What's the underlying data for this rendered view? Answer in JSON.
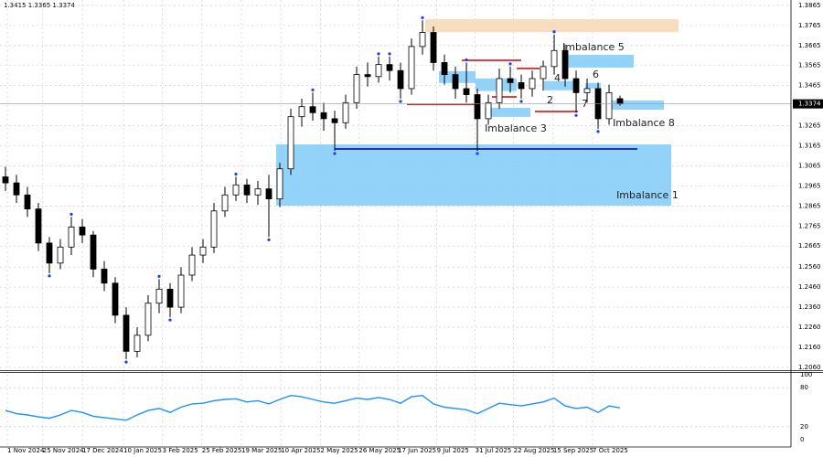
{
  "chart_data": {
    "type": "candlestick",
    "header": "1.3415 1.3365 1.3374",
    "candles": [
      [
        1.301,
        1.306,
        1.294,
        1.298
      ],
      [
        1.298,
        1.302,
        1.288,
        1.292
      ],
      [
        1.292,
        1.296,
        1.281,
        1.285
      ],
      [
        1.285,
        1.288,
        1.264,
        1.268
      ],
      [
        1.268,
        1.271,
        1.253,
        1.258
      ],
      [
        1.258,
        1.27,
        1.255,
        1.266
      ],
      [
        1.266,
        1.281,
        1.262,
        1.276
      ],
      [
        1.276,
        1.28,
        1.268,
        1.272
      ],
      [
        1.272,
        1.274,
        1.251,
        1.255
      ],
      [
        1.255,
        1.259,
        1.244,
        1.248
      ],
      [
        1.248,
        1.251,
        1.228,
        1.232
      ],
      [
        1.232,
        1.236,
        1.21,
        1.214
      ],
      [
        1.214,
        1.226,
        1.211,
        1.222
      ],
      [
        1.222,
        1.242,
        1.219,
        1.238
      ],
      [
        1.238,
        1.25,
        1.233,
        1.245
      ],
      [
        1.245,
        1.248,
        1.231,
        1.236
      ],
      [
        1.236,
        1.256,
        1.233,
        1.252
      ],
      [
        1.252,
        1.266,
        1.249,
        1.262
      ],
      [
        1.262,
        1.27,
        1.258,
        1.266
      ],
      [
        1.266,
        1.288,
        1.263,
        1.284
      ],
      [
        1.284,
        1.296,
        1.281,
        1.292
      ],
      [
        1.292,
        1.301,
        1.289,
        1.297
      ],
      [
        1.297,
        1.3,
        1.288,
        1.292
      ],
      [
        1.292,
        1.299,
        1.287,
        1.295
      ],
      [
        1.295,
        1.302,
        1.271,
        1.29
      ],
      [
        1.29,
        1.308,
        1.286,
        1.305
      ],
      [
        1.305,
        1.335,
        1.302,
        1.331
      ],
      [
        1.331,
        1.34,
        1.326,
        1.336
      ],
      [
        1.336,
        1.343,
        1.329,
        1.333
      ],
      [
        1.333,
        1.338,
        1.324,
        1.33
      ],
      [
        1.33,
        1.334,
        1.314,
        1.328
      ],
      [
        1.328,
        1.342,
        1.325,
        1.338
      ],
      [
        1.338,
        1.356,
        1.335,
        1.352
      ],
      [
        1.352,
        1.358,
        1.346,
        1.351
      ],
      [
        1.351,
        1.361,
        1.348,
        1.357
      ],
      [
        1.357,
        1.361,
        1.349,
        1.354
      ],
      [
        1.354,
        1.358,
        1.34,
        1.345
      ],
      [
        1.345,
        1.37,
        1.342,
        1.366
      ],
      [
        1.366,
        1.379,
        1.362,
        1.373
      ],
      [
        1.373,
        1.376,
        1.354,
        1.358
      ],
      [
        1.358,
        1.362,
        1.347,
        1.352
      ],
      [
        1.352,
        1.356,
        1.34,
        1.345
      ],
      [
        1.345,
        1.358,
        1.338,
        1.342
      ],
      [
        1.342,
        1.345,
        1.314,
        1.33
      ],
      [
        1.33,
        1.342,
        1.327,
        1.338
      ],
      [
        1.338,
        1.355,
        1.335,
        1.35
      ],
      [
        1.35,
        1.356,
        1.343,
        1.348
      ],
      [
        1.348,
        1.352,
        1.34,
        1.345
      ],
      [
        1.345,
        1.354,
        1.341,
        1.35
      ],
      [
        1.35,
        1.359,
        1.344,
        1.356
      ],
      [
        1.356,
        1.372,
        1.352,
        1.364
      ],
      [
        1.364,
        1.367,
        1.346,
        1.35
      ],
      [
        1.35,
        1.354,
        1.333,
        1.343
      ],
      [
        1.343,
        1.35,
        1.338,
        1.345
      ],
      [
        1.345,
        1.348,
        1.325,
        1.33
      ],
      [
        1.33,
        1.347,
        1.327,
        1.343
      ],
      [
        1.34,
        1.3415,
        1.3365,
        1.3374
      ]
    ],
    "xlim": [
      -0.5,
      71.58
    ],
    "ylim": [
      1.2046,
      1.3892
    ],
    "yticks": [
      1.3865,
      1.3765,
      1.3665,
      1.3565,
      1.3465,
      1.3265,
      1.3165,
      1.3065,
      1.2965,
      1.2865,
      1.2765,
      1.2665,
      {
        "value": 1.256,
        "label": "1.2560"
      },
      {
        "value": 1.246,
        "label": "1.2460"
      },
      {
        "value": 1.236,
        "label": "1.2360"
      },
      {
        "value": 1.226,
        "label": "1.2260"
      },
      {
        "value": 1.216,
        "label": "1.2160"
      },
      {
        "value": 1.206,
        "label": "1.2060"
      }
    ],
    "xticks": [
      {
        "value": 0.17,
        "label": "1 Nov 2024"
      },
      {
        "value": 3.4,
        "label": "25 Nov 2024"
      },
      {
        "value": 7,
        "label": "17 Dec 2024"
      },
      {
        "value": 10.75,
        "label": "10 Jan 2025"
      },
      {
        "value": 14.3,
        "label": "3 Feb 2025"
      },
      {
        "value": 17.9,
        "label": "25 Feb 2025"
      },
      {
        "value": 21.5,
        "label": "19 Mar 2025"
      },
      {
        "value": 25.1,
        "label": "10 Apr 2025"
      },
      {
        "value": 28.7,
        "label": "2 May 2025"
      },
      {
        "value": 32.2,
        "label": "26 May 2025"
      },
      {
        "value": 35.75,
        "label": "17 Jun 2025"
      },
      {
        "value": 39.3,
        "label": "9 Jul 2025"
      },
      {
        "value": 42.8,
        "label": "31 Jul 2025"
      },
      {
        "value": 46.3,
        "label": "22 Aug 2025"
      },
      {
        "value": 49.9,
        "label": "15 Sep 2025"
      },
      {
        "value": 53.5,
        "label": "7 Oct 2025"
      }
    ],
    "grid": true,
    "last_price": 1.3374,
    "zones": [
      {
        "color": "#f7d9b8",
        "x": [
          38.25,
          61.33
        ],
        "y": [
          1.3732,
          1.3796
        ]
      },
      {
        "color": "#87cefa",
        "x": [
          50.75,
          57.25
        ],
        "y": [
          1.3555,
          1.3619
        ],
        "label": "Imbalance 5"
      },
      {
        "color": "#87cefa",
        "x": [
          24.67,
          60.67
        ],
        "y": [
          1.2866,
          1.3172
        ],
        "label": "Imbalance 1"
      },
      {
        "color": "#87cefa",
        "x": [
          43.67,
          47.83
        ],
        "y": [
          1.3309,
          1.3354
        ],
        "label": "Imbalance 3"
      },
      {
        "color": "#87cefa",
        "x": [
          54.92,
          60
        ],
        "y": [
          1.3345,
          1.3391
        ],
        "label": "Imbalance 8"
      },
      {
        "color": "#87cefa",
        "x": [
          39.5,
          42.83
        ],
        "y": [
          1.3478,
          1.3537
        ]
      },
      {
        "color": "#87cefa",
        "x": [
          42.83,
          46.58
        ],
        "y": [
          1.3438,
          1.3501
        ]
      },
      {
        "color": "#87cefa",
        "x": [
          49.08,
          52.17
        ],
        "y": [
          1.3442,
          1.3488
        ]
      },
      {
        "color": "#87cefa",
        "x": [
          52.83,
          54.25
        ],
        "y": [
          1.3451,
          1.3478
        ]
      }
    ],
    "lines": [
      {
        "color": "#d00000",
        "x": [
          36.58,
          42.83
        ],
        "y": 1.3372
      },
      {
        "color": "#d00000",
        "x": [
          41.58,
          47
        ],
        "y": 1.3591
      },
      {
        "color": "#d00000",
        "x": [
          46.58,
          48.67
        ],
        "y": 1.3551
      },
      {
        "color": "#d00000",
        "x": [
          44.33,
          46.58
        ],
        "y": 1.3409
      },
      {
        "color": "#d00000",
        "x": [
          48.25,
          52.17
        ],
        "y": 1.3336
      },
      {
        "color": "#00008b",
        "x": [
          30,
          57.58
        ],
        "y": 1.3149
      }
    ],
    "annotations": [
      "2",
      "4",
      "6",
      "7"
    ],
    "rsi": {
      "color": "#1e90ff",
      "ylim": [
        0,
        100
      ],
      "yticks": [
        100,
        80,
        20,
        0
      ],
      "values": [
        45,
        40,
        38,
        35,
        33,
        38,
        45,
        42,
        36,
        34,
        32,
        30,
        38,
        45,
        48,
        42,
        50,
        55,
        56,
        60,
        62,
        63,
        58,
        60,
        55,
        62,
        68,
        66,
        62,
        58,
        56,
        60,
        64,
        62,
        65,
        62,
        56,
        66,
        68,
        55,
        50,
        48,
        46,
        40,
        48,
        56,
        54,
        52,
        55,
        58,
        64,
        52,
        48,
        50,
        42,
        52,
        49
      ]
    }
  }
}
